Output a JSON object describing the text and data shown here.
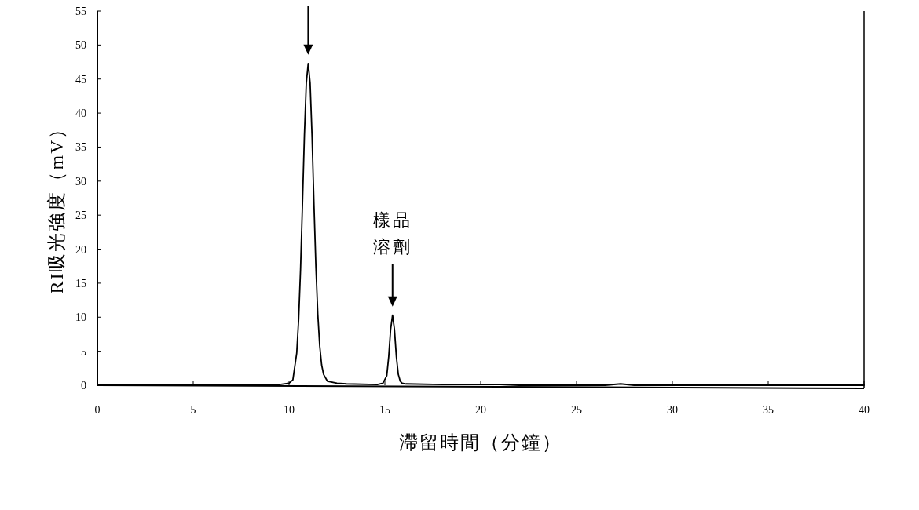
{
  "chart_data": {
    "type": "line",
    "xlabel": "滯留時間（分鐘）",
    "ylabel": "RI吸光強度（mV）",
    "xlim": [
      0,
      40
    ],
    "ylim": [
      0,
      55
    ],
    "xticks": [
      0,
      5,
      10,
      15,
      20,
      25,
      30,
      35,
      40
    ],
    "yticks": [
      0,
      5,
      10,
      15,
      20,
      25,
      30,
      35,
      40,
      45,
      50,
      55
    ],
    "grid": false,
    "marker": "none",
    "line_style": "solid",
    "x": [
      0,
      3,
      5,
      8,
      9.5,
      10.0,
      10.2,
      10.4,
      10.5,
      10.6,
      10.7,
      10.8,
      10.9,
      11.0,
      11.1,
      11.2,
      11.3,
      11.4,
      11.5,
      11.6,
      11.7,
      11.8,
      12.0,
      12.5,
      13,
      14.6,
      14.9,
      15.1,
      15.2,
      15.3,
      15.4,
      15.5,
      15.6,
      15.7,
      15.8,
      15.9,
      16.1,
      18,
      21,
      22,
      26.5,
      27.3,
      28,
      32,
      40
    ],
    "series": [
      {
        "color": "#000000",
        "values": [
          0.1,
          0.1,
          0.1,
          0,
          0.1,
          0.3,
          0.8,
          4.7,
          9.6,
          17.0,
          26.6,
          36.6,
          44.4,
          47.3,
          44.4,
          36.6,
          26.6,
          17.5,
          10.5,
          5.8,
          3.0,
          1.6,
          0.6,
          0.3,
          0.2,
          0.1,
          0.3,
          1.4,
          4.2,
          8.2,
          10.3,
          8.2,
          4.2,
          1.6,
          0.6,
          0.3,
          0.2,
          0.1,
          0.1,
          0,
          0,
          0.2,
          0,
          0,
          0
        ]
      }
    ],
    "annotations": [
      "樣品溶劑"
    ]
  }
}
